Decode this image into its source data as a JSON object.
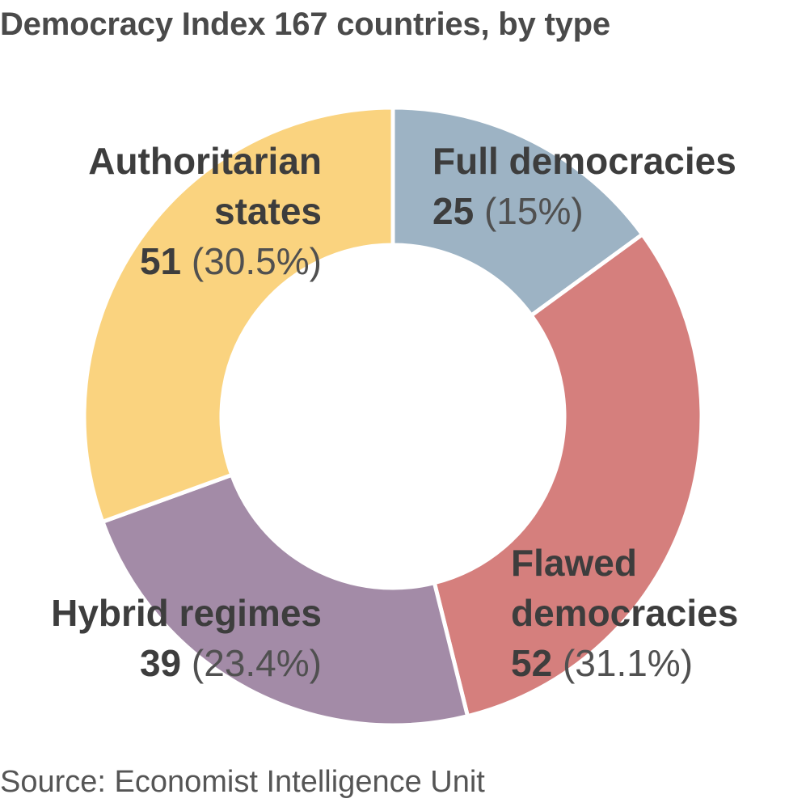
{
  "chart_data": {
    "type": "pie",
    "title": "Democracy Index 167 countries, by type",
    "source": "Source: Economist Intelligence Unit",
    "donut": true,
    "slices": [
      {
        "label_lines": [
          "Full democracies"
        ],
        "value": 25,
        "percent": "(15%)",
        "color": "#9db3c4"
      },
      {
        "label_lines": [
          "Flawed",
          "democracies"
        ],
        "value": 52,
        "percent": "(31.1%)",
        "color": "#d57f7d"
      },
      {
        "label_lines": [
          "Hybrid regimes"
        ],
        "value": 39,
        "percent": "(23.4%)",
        "color": "#a38ba7"
      },
      {
        "label_lines": [
          "Authoritarian",
          "states"
        ],
        "value": 51,
        "percent": "(30.5%)",
        "color": "#fad37f"
      }
    ]
  }
}
